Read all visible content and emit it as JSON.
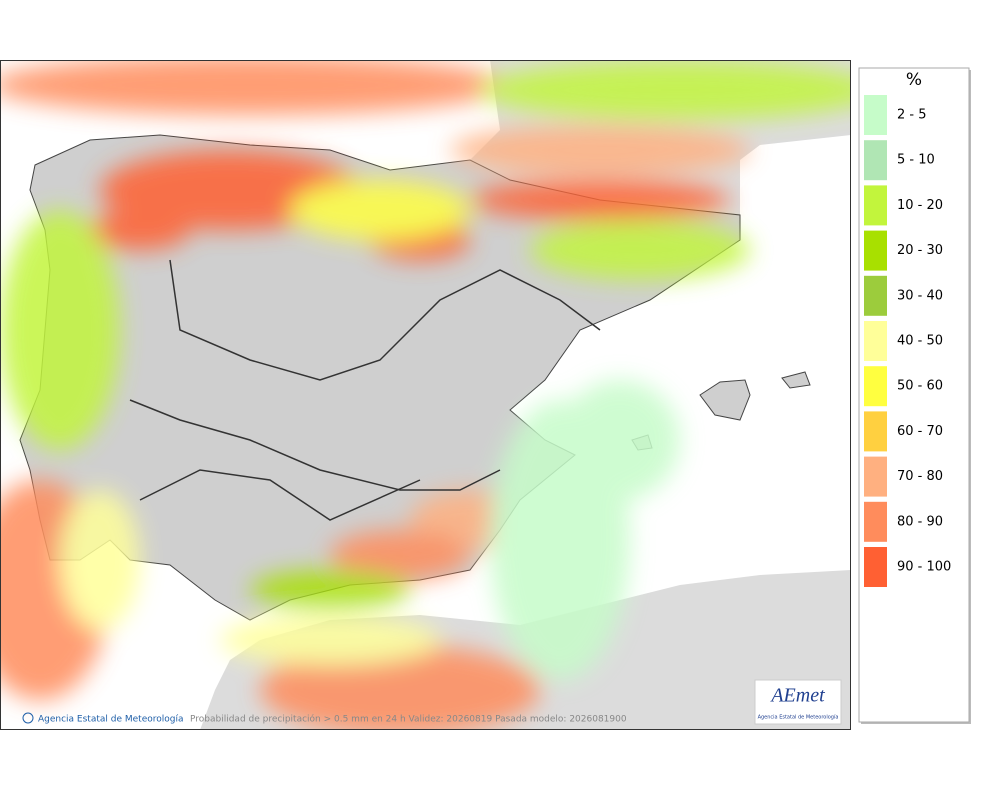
{
  "legend": {
    "title": "%",
    "items": [
      {
        "label": "2 - 5",
        "color": "#c6fcc9"
      },
      {
        "label": "5 - 10",
        "color": "#b0e6b4"
      },
      {
        "label": "10 - 20",
        "color": "#c2f53c"
      },
      {
        "label": "20 - 30",
        "color": "#a8e000"
      },
      {
        "label": "30 - 40",
        "color": "#9ccc3c"
      },
      {
        "label": "40 - 50",
        "color": "#ffff99"
      },
      {
        "label": "50 - 60",
        "color": "#ffff40"
      },
      {
        "label": "60 - 70",
        "color": "#ffd040"
      },
      {
        "label": "70 - 80",
        "color": "#ffb080"
      },
      {
        "label": "80 - 90",
        "color": "#ff8c5c"
      },
      {
        "label": "90 - 100",
        "color": "#ff6033"
      }
    ]
  },
  "footer": {
    "credit": "Agencia Estatal de Meteorología",
    "caption": "Probabilidad de precipitación > 0.5 mm en 24 h Validez: 20260819 Pasada modelo: 2026081900"
  },
  "logo": {
    "name": "AEmet",
    "subtitle": "Agencia Estatal de Meteorología"
  }
}
